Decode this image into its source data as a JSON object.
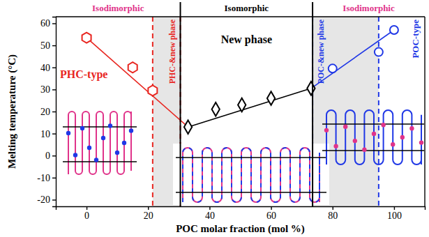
{
  "chart_data": {
    "type": "scatter",
    "x_label": "POC molar fraction (mol %)",
    "y_label": "Melting temperature (°C)",
    "xlim": [
      -10,
      110
    ],
    "xticks": [
      0,
      20,
      40,
      60,
      80,
      100
    ],
    "ylim": [
      -23,
      63
    ],
    "yticks": [
      -20,
      -10,
      0,
      10,
      20,
      30,
      40,
      50,
      60
    ],
    "series": [
      {
        "name": "PHC-type",
        "type": "scatter",
        "marker": "hexagon",
        "color": "#e8251f",
        "x": [
          0,
          15,
          21.5
        ],
        "values": [
          53.5,
          40,
          29.5
        ]
      },
      {
        "name": "New phase",
        "type": "scatter",
        "marker": "diamond",
        "color": "#000000",
        "x": [
          33,
          42,
          50.5,
          60,
          73
        ],
        "values": [
          13,
          21,
          23,
          26,
          30.5
        ]
      },
      {
        "name": "POC-type",
        "type": "scatter",
        "marker": "circle",
        "color": "#2038e6",
        "x": [
          80,
          95,
          100
        ],
        "values": [
          39.5,
          47,
          57
        ]
      },
      {
        "type": "line",
        "line_style": "solid",
        "color": "#e8251f",
        "x": [
          0,
          33
        ],
        "values": [
          53.5,
          13
        ]
      },
      {
        "type": "line",
        "line_style": "solid",
        "color": "#000000",
        "x": [
          33,
          73
        ],
        "values": [
          13,
          30.5
        ]
      },
      {
        "type": "line",
        "line_style": "solid",
        "color": "#2038e6",
        "x": [
          73,
          100
        ],
        "values": [
          30.5,
          57
        ]
      }
    ],
    "regions": [
      {
        "label": "Isodimorphic",
        "color": "#e0338a",
        "x": [
          -10,
          30.5
        ]
      },
      {
        "label": "Isomorphic",
        "color": "#000000",
        "x": [
          30.5,
          73.5
        ]
      },
      {
        "label": "Isodimorphic",
        "color": "#e0338a",
        "x": [
          73.5,
          110
        ]
      }
    ],
    "mixed_regions": [
      {
        "label": "PHC-&new phase",
        "color": "#e8251f",
        "line_style": "dashed",
        "x": [
          21.5,
          30.5
        ]
      },
      {
        "label": "POC-&new phase",
        "color": "#2038e6",
        "line_style": "dashed",
        "x": [
          73.5,
          95
        ]
      }
    ]
  }
}
